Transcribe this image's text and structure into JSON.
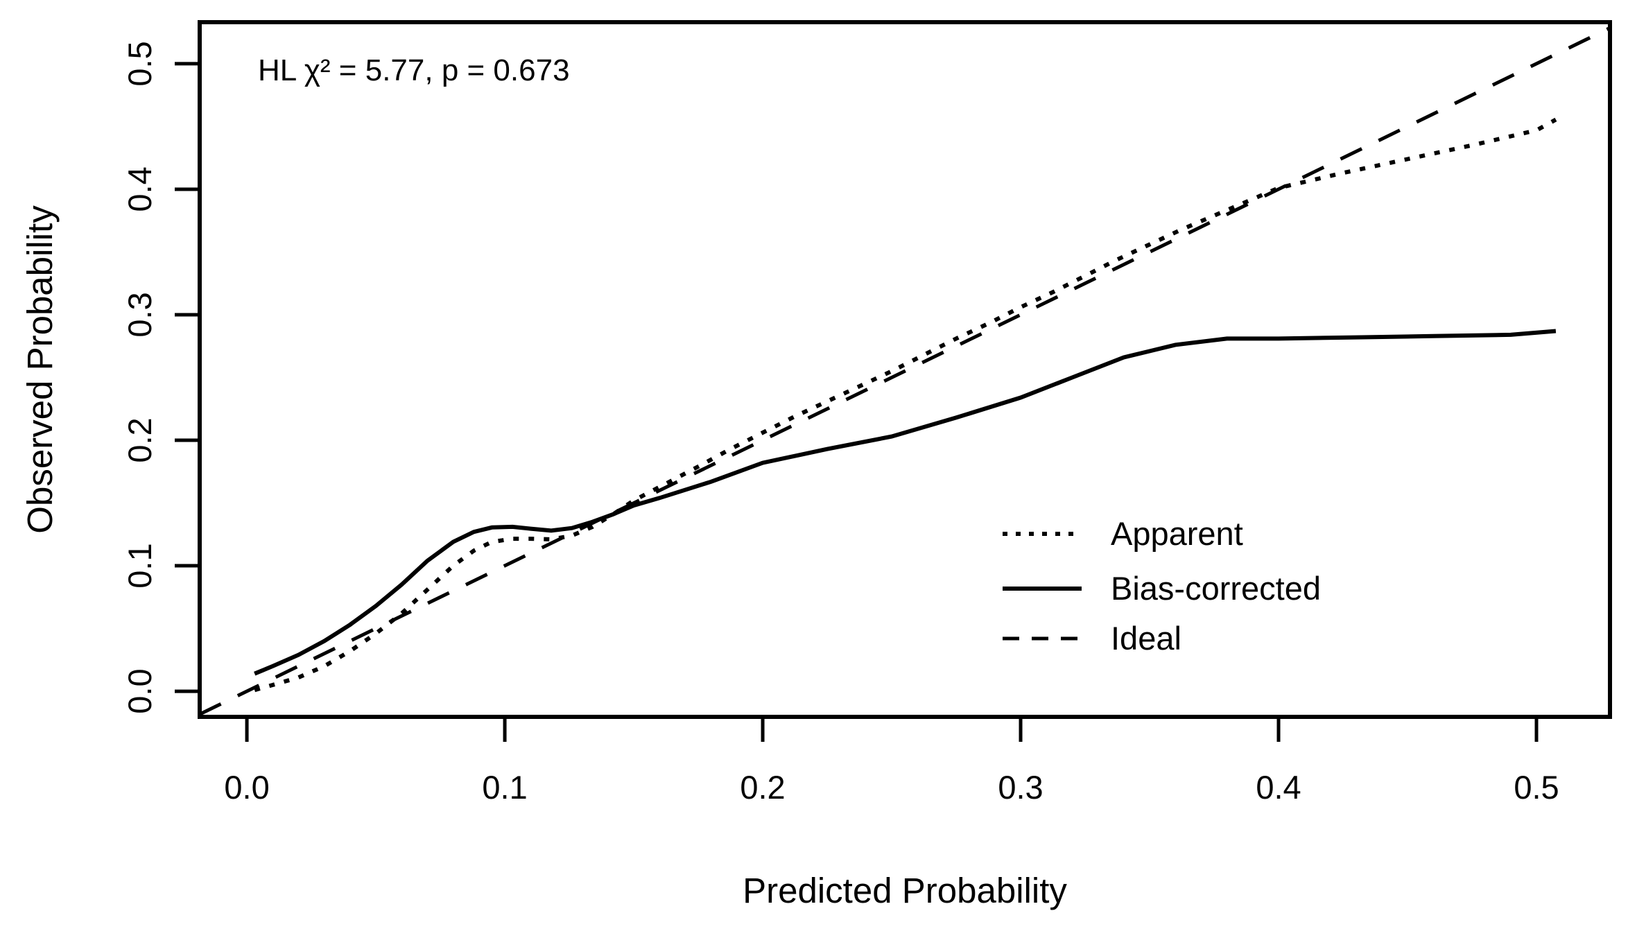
{
  "figure": {
    "background_color": "#ffffff",
    "foreground_color": "#000000",
    "annotation": "HL χ² = 5.77, p = 0.673"
  },
  "chart_data": {
    "type": "line",
    "title": "",
    "xlabel": "Predicted Probability",
    "ylabel": "Observed Probability",
    "xlim": [
      -0.0183,
      0.5285
    ],
    "ylim": [
      -0.0204,
      0.5331
    ],
    "grid": false,
    "annotation": "HL χ² = 5.77, p = 0.673",
    "legend_position": "right-middle",
    "x_ticks": [
      0.0,
      0.1,
      0.2,
      0.3,
      0.4,
      0.5
    ],
    "x_tick_labels": [
      "0.0",
      "0.1",
      "0.2",
      "0.3",
      "0.4",
      "0.5"
    ],
    "y_ticks": [
      0.0,
      0.1,
      0.2,
      0.3,
      0.4,
      0.5
    ],
    "y_tick_labels": [
      "0.0",
      "0.1",
      "0.2",
      "0.3",
      "0.4",
      "0.5"
    ],
    "legend": [
      {
        "label": "Apparent",
        "line_style": "dotted"
      },
      {
        "label": "Bias-corrected",
        "line_style": "solid"
      },
      {
        "label": "Ideal",
        "line_style": "dashed"
      }
    ],
    "series": [
      {
        "name": "Ideal",
        "line_style": "dashed",
        "x": [
          -0.0183,
          0.5285
        ],
        "y": [
          -0.0183,
          0.5285
        ]
      },
      {
        "name": "Apparent",
        "line_style": "dotted",
        "x": [
          0.003,
          0.01,
          0.02,
          0.03,
          0.04,
          0.05,
          0.06,
          0.07,
          0.08,
          0.088,
          0.095,
          0.103,
          0.11,
          0.118,
          0.126,
          0.134,
          0.142,
          0.15,
          0.163,
          0.175,
          0.1875,
          0.2,
          0.2125,
          0.225,
          0.2375,
          0.25,
          0.2625,
          0.275,
          0.2875,
          0.3,
          0.3125,
          0.325,
          0.3375,
          0.35,
          0.3625,
          0.375,
          0.3875,
          0.4,
          0.4125,
          0.425,
          0.4375,
          0.45,
          0.4625,
          0.475,
          0.4875,
          0.5,
          0.5075
        ],
        "y": [
          0.001,
          0.005,
          0.011,
          0.02,
          0.032,
          0.046,
          0.062,
          0.081,
          0.1,
          0.112,
          0.119,
          0.1215,
          0.1215,
          0.121,
          0.124,
          0.131,
          0.141,
          0.152,
          0.166,
          0.179,
          0.193,
          0.206,
          0.219,
          0.231,
          0.243,
          0.255,
          0.268,
          0.281,
          0.293,
          0.306,
          0.318,
          0.331,
          0.344,
          0.356,
          0.368,
          0.379,
          0.39,
          0.401,
          0.407,
          0.413,
          0.4185,
          0.424,
          0.4295,
          0.435,
          0.441,
          0.447,
          0.4555
        ]
      },
      {
        "name": "Bias-corrected",
        "line_style": "solid",
        "x": [
          0.003,
          0.01,
          0.02,
          0.03,
          0.04,
          0.05,
          0.06,
          0.07,
          0.08,
          0.088,
          0.095,
          0.103,
          0.11,
          0.118,
          0.126,
          0.134,
          0.142,
          0.15,
          0.16,
          0.18,
          0.2,
          0.225,
          0.25,
          0.275,
          0.3,
          0.32,
          0.34,
          0.36,
          0.38,
          0.4,
          0.43,
          0.46,
          0.49,
          0.5075
        ],
        "y": [
          0.014,
          0.02,
          0.029,
          0.04,
          0.053,
          0.068,
          0.085,
          0.104,
          0.119,
          0.127,
          0.1305,
          0.131,
          0.1295,
          0.128,
          0.13,
          0.135,
          0.141,
          0.148,
          0.154,
          0.167,
          0.182,
          0.193,
          0.203,
          0.218,
          0.234,
          0.25,
          0.266,
          0.276,
          0.281,
          0.281,
          0.282,
          0.283,
          0.284,
          0.287
        ]
      }
    ]
  }
}
